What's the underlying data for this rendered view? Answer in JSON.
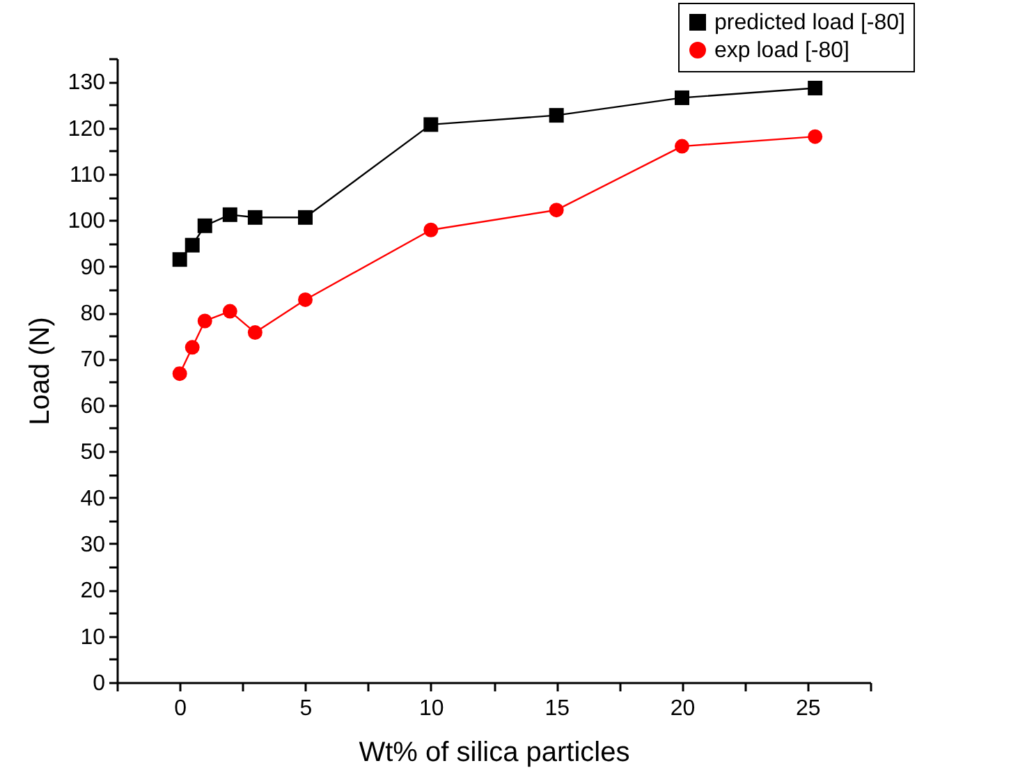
{
  "chart_data": {
    "type": "line",
    "xlabel": "Wt% of silica particles",
    "ylabel": "Load (N)",
    "x": [
      0,
      0.5,
      1,
      2,
      3,
      5,
      10,
      15,
      20,
      25.3
    ],
    "series": [
      {
        "name": "predicted load [-80]",
        "color": "#000000",
        "marker": "square",
        "values": [
          91.5,
          94.6,
          98.8,
          101.2,
          100.6,
          100.6,
          120.7,
          122.7,
          126.5,
          128.6
        ]
      },
      {
        "name": "exp load [-80]",
        "color": "#ff0000",
        "marker": "circle",
        "values": [
          66.8,
          72.5,
          78.2,
          80.3,
          75.7,
          82.8,
          97.9,
          102.2,
          116.0,
          118.1
        ]
      }
    ],
    "xlim": [
      -2.5,
      27.5
    ],
    "xticks": [
      {
        "value": -2.5,
        "label": null
      },
      0,
      {
        "value": 2.5,
        "label": null
      },
      5,
      {
        "value": 7.5,
        "label": null
      },
      10,
      {
        "value": 12.5,
        "label": null
      },
      15,
      {
        "value": 17.5,
        "label": null
      },
      20,
      {
        "value": 22.5,
        "label": null
      },
      25,
      {
        "value": 27.5,
        "label": null
      }
    ],
    "ylim": [
      0,
      135
    ],
    "yticks": [
      0,
      {
        "value": 5,
        "label": null
      },
      10,
      {
        "value": 15,
        "label": null
      },
      20,
      {
        "value": 25,
        "label": null
      },
      30,
      {
        "value": 35,
        "label": null
      },
      40,
      {
        "value": 45,
        "label": null
      },
      50,
      {
        "value": 55,
        "label": null
      },
      60,
      {
        "value": 65,
        "label": null
      },
      70,
      {
        "value": 75,
        "label": null
      },
      80,
      {
        "value": 85,
        "label": null
      },
      90,
      {
        "value": 95,
        "label": null
      },
      100,
      {
        "value": 105,
        "label": null
      },
      110,
      {
        "value": 115,
        "label": null
      },
      120,
      {
        "value": 125,
        "label": null
      },
      130,
      {
        "value": 135,
        "label": null
      }
    ],
    "grid": false,
    "legend": "top right"
  }
}
